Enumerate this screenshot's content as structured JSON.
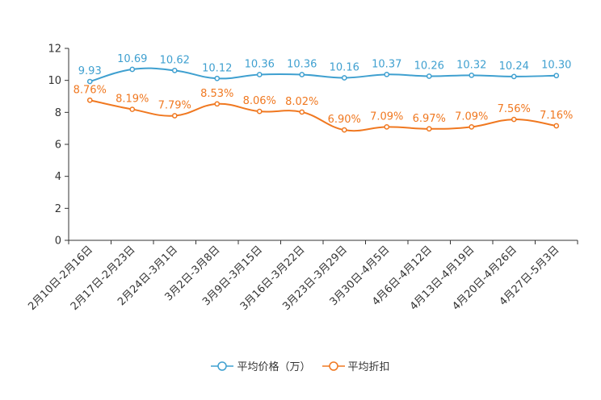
{
  "chart_data": {
    "type": "line",
    "title": "",
    "xlabel": "",
    "ylabel": "",
    "ylim": [
      0,
      12
    ],
    "yticks": [
      0,
      2,
      4,
      6,
      8,
      10,
      12
    ],
    "grid": false,
    "legend_position": "bottom-center",
    "categories": [
      "2月10日-2月16日",
      "2月17日-2月23日",
      "2月24日-3月1日",
      "3月2日-3月8日",
      "3月9日-3月15日",
      "3月16日-3月22日",
      "3月23日-3月29日",
      "3月30日-4月5日",
      "4月6日-4月12日",
      "4月13日-4月19日",
      "4月20日-4月26日",
      "4月27日-5月3日"
    ],
    "series": [
      {
        "name": "平均价格（万）",
        "color": "#3fa0d0",
        "values": [
          9.93,
          10.69,
          10.62,
          10.12,
          10.36,
          10.36,
          10.16,
          10.37,
          10.26,
          10.32,
          10.24,
          10.3
        ],
        "labels": [
          "9.93",
          "10.69",
          "10.62",
          "10.12",
          "10.36",
          "10.36",
          "10.16",
          "10.37",
          "10.26",
          "10.32",
          "10.24",
          "10.30"
        ]
      },
      {
        "name": "平均折扣",
        "color": "#f07820",
        "values": [
          8.76,
          8.19,
          7.79,
          8.53,
          8.06,
          8.02,
          6.9,
          7.09,
          6.97,
          7.09,
          7.56,
          7.16
        ],
        "labels": [
          "8.76%",
          "8.19%",
          "7.79%",
          "8.53%",
          "8.06%",
          "8.02%",
          "6.90%",
          "7.09%",
          "6.97%",
          "7.09%",
          "7.56%",
          "7.16%"
        ]
      }
    ]
  }
}
